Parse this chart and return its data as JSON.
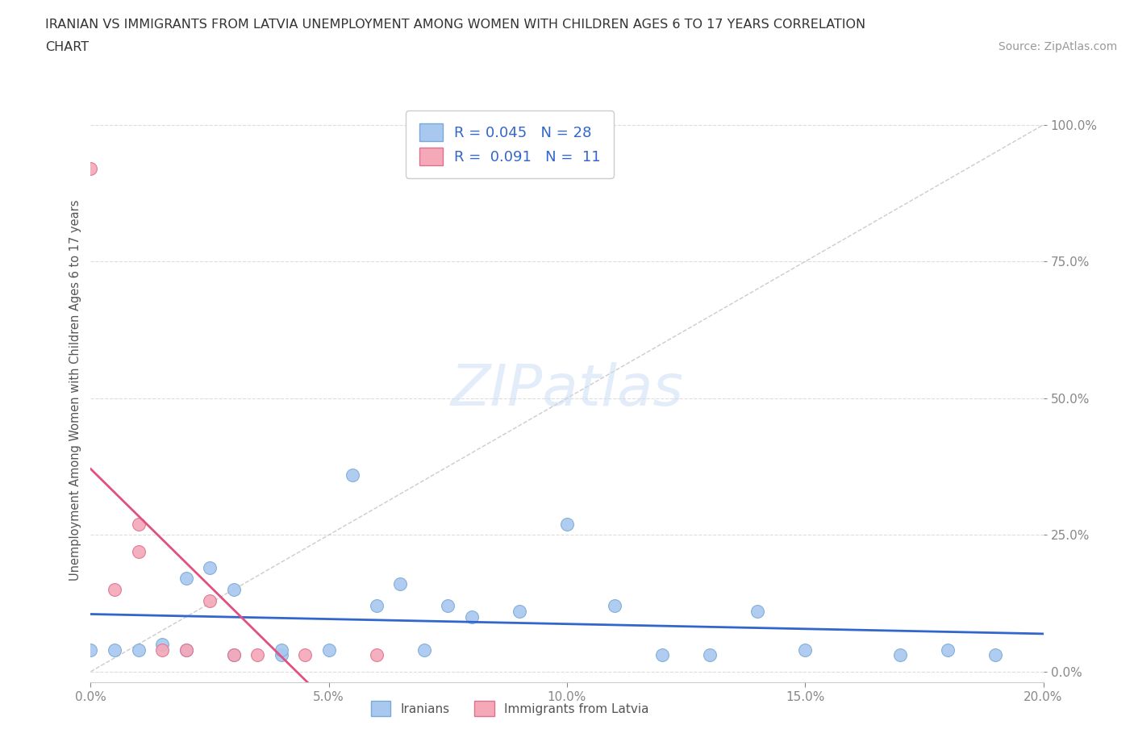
{
  "title_line1": "IRANIAN VS IMMIGRANTS FROM LATVIA UNEMPLOYMENT AMONG WOMEN WITH CHILDREN AGES 6 TO 17 YEARS CORRELATION",
  "title_line2": "CHART",
  "source": "Source: ZipAtlas.com",
  "ylabel": "Unemployment Among Women with Children Ages 6 to 17 years",
  "xlim": [
    0.0,
    0.2
  ],
  "ylim": [
    -0.02,
    1.05
  ],
  "yticks": [
    0.0,
    0.25,
    0.5,
    0.75,
    1.0
  ],
  "ytick_labels": [
    "0.0%",
    "25.0%",
    "50.0%",
    "75.0%",
    "100.0%"
  ],
  "xticks": [
    0.0,
    0.05,
    0.1,
    0.15,
    0.2
  ],
  "xtick_labels": [
    "0.0%",
    "5.0%",
    "10.0%",
    "15.0%",
    "20.0%"
  ],
  "iranian_R": 0.045,
  "iranian_N": 28,
  "latvia_R": 0.091,
  "latvia_N": 11,
  "iranians_color": "#a8c8f0",
  "latvia_color": "#f4a8b8",
  "iranians_edge": "#7aaad4",
  "latvia_edge": "#e07090",
  "trend_iranian_color": "#3366cc",
  "trend_latvia_color": "#e05080",
  "diag_line_color": "#cccccc",
  "background_color": "#ffffff",
  "iranians_x": [
    0.0,
    0.005,
    0.01,
    0.015,
    0.02,
    0.02,
    0.025,
    0.03,
    0.03,
    0.04,
    0.04,
    0.05,
    0.055,
    0.06,
    0.065,
    0.07,
    0.075,
    0.08,
    0.09,
    0.1,
    0.11,
    0.12,
    0.13,
    0.14,
    0.15,
    0.17,
    0.18,
    0.19
  ],
  "iranians_y": [
    0.04,
    0.04,
    0.04,
    0.05,
    0.04,
    0.17,
    0.19,
    0.03,
    0.15,
    0.03,
    0.04,
    0.04,
    0.36,
    0.12,
    0.16,
    0.04,
    0.12,
    0.1,
    0.11,
    0.27,
    0.12,
    0.03,
    0.03,
    0.11,
    0.04,
    0.03,
    0.04,
    0.03
  ],
  "latvia_x": [
    0.0,
    0.005,
    0.01,
    0.01,
    0.015,
    0.02,
    0.025,
    0.03,
    0.035,
    0.045,
    0.06
  ],
  "latvia_y": [
    0.92,
    0.15,
    0.22,
    0.27,
    0.04,
    0.04,
    0.13,
    0.03,
    0.03,
    0.03,
    0.03
  ]
}
